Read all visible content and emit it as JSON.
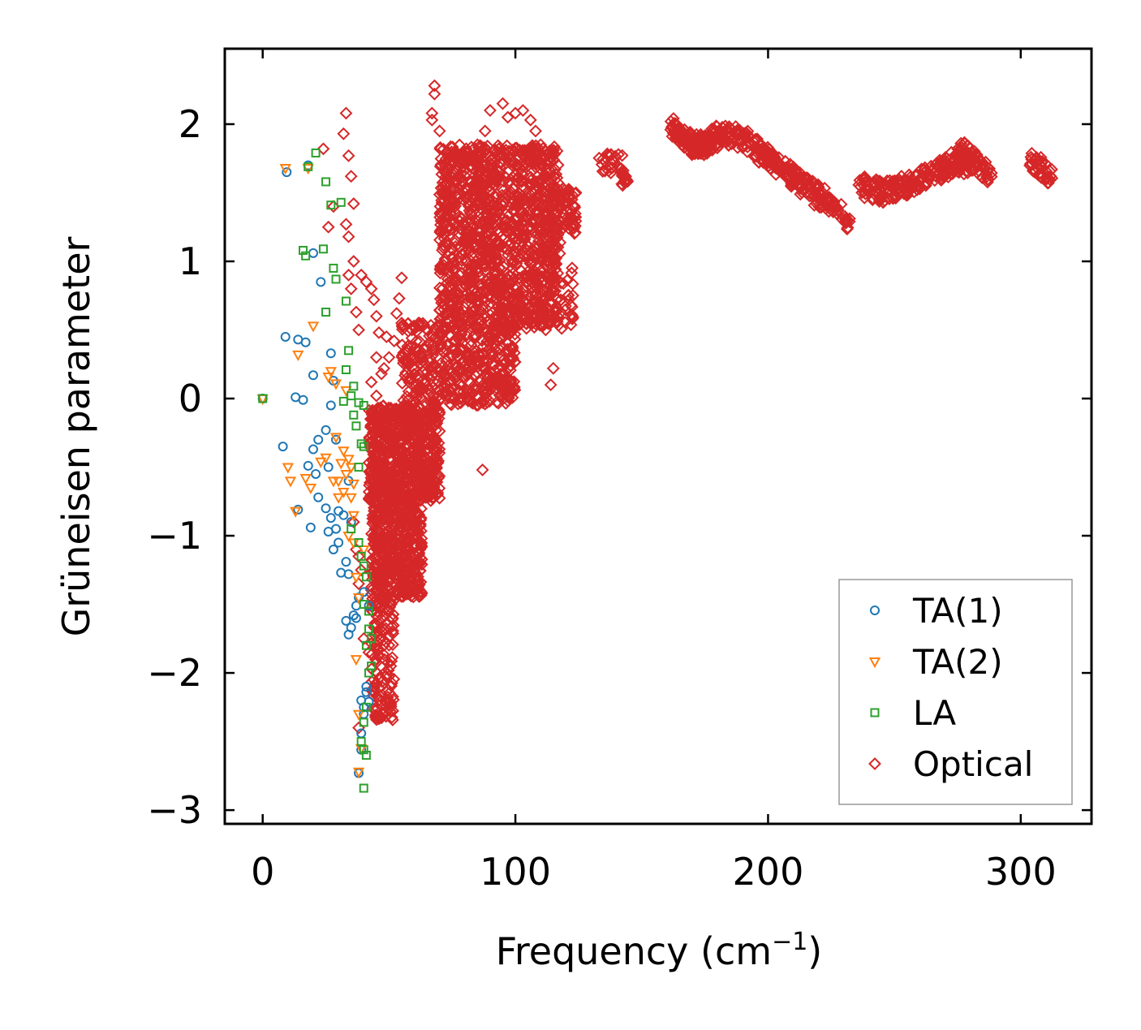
{
  "chart_data": {
    "type": "scatter",
    "title": "",
    "xlabel": "Frequency (cm",
    "xlabel_sup": "−1",
    "xlabel_suffix": ")",
    "ylabel": "Grüneisen parameter",
    "xlim": [
      -15,
      328
    ],
    "ylim": [
      -3.1,
      2.55
    ],
    "xticks": [
      0,
      100,
      200,
      300
    ],
    "xtick_labels": [
      "0",
      "100",
      "200",
      "300"
    ],
    "yticks": [
      -3,
      -2,
      -1,
      0,
      1,
      2
    ],
    "ytick_labels": [
      "−3",
      "−2",
      "−1",
      "0",
      "1",
      "2"
    ],
    "grid": false,
    "legend_position": "lower-right",
    "series": [
      {
        "name": "TA(1)",
        "marker": "circle",
        "color": "#1f77b4",
        "points": [
          [
            0,
            0
          ],
          [
            9.5,
            1.65
          ],
          [
            9,
            0.45
          ],
          [
            14,
            0.43
          ],
          [
            17,
            0.41
          ],
          [
            18,
            1.7
          ],
          [
            20,
            1.06
          ],
          [
            23,
            0.85
          ],
          [
            8,
            -0.35
          ],
          [
            13,
            0.01
          ],
          [
            16,
            -0.01
          ],
          [
            20,
            0.17
          ],
          [
            27,
            0.33
          ],
          [
            28,
            0.13
          ],
          [
            27,
            -0.05
          ],
          [
            25,
            -0.23
          ],
          [
            22,
            -0.3
          ],
          [
            20,
            -0.37
          ],
          [
            18,
            -0.49
          ],
          [
            21,
            -0.55
          ],
          [
            26,
            -0.5
          ],
          [
            29,
            -0.3
          ],
          [
            14,
            -0.81
          ],
          [
            19,
            -0.94
          ],
          [
            22,
            -0.72
          ],
          [
            25,
            -0.8
          ],
          [
            26,
            -0.97
          ],
          [
            27,
            -0.87
          ],
          [
            28,
            -1.1
          ],
          [
            29,
            -0.95
          ],
          [
            30,
            -1.05
          ],
          [
            31,
            -1.27
          ],
          [
            33,
            -1.19
          ],
          [
            34,
            -1.28
          ],
          [
            30,
            -0.82
          ],
          [
            32,
            -0.85
          ],
          [
            34,
            -0.6
          ],
          [
            35,
            -0.9
          ],
          [
            33,
            -1.62
          ],
          [
            34,
            -1.72
          ],
          [
            35,
            -1.67
          ],
          [
            36,
            -1.58
          ],
          [
            37,
            -1.51
          ],
          [
            38,
            -1.45
          ],
          [
            37,
            -1.6
          ],
          [
            39,
            -2.2
          ],
          [
            40,
            -2.25
          ],
          [
            41,
            -2.14
          ],
          [
            39,
            -2.44
          ],
          [
            40,
            -2.3
          ],
          [
            42,
            -2.21
          ],
          [
            38,
            -2.73
          ],
          [
            39,
            -2.56
          ],
          [
            41,
            -2.1
          ],
          [
            40,
            -1.41
          ],
          [
            42,
            -1.51
          ]
        ]
      },
      {
        "name": "TA(2)",
        "marker": "triangle-down",
        "color": "#ff7f0e",
        "points": [
          [
            0,
            0
          ],
          [
            9,
            1.68
          ],
          [
            18,
            1.68
          ],
          [
            14,
            0.32
          ],
          [
            20,
            0.53
          ],
          [
            27,
            0.2
          ],
          [
            29,
            0.11
          ],
          [
            33,
            0.06
          ],
          [
            26,
            0.16
          ],
          [
            29,
            -0.28
          ],
          [
            32,
            -0.38
          ],
          [
            34,
            -0.44
          ],
          [
            35,
            -0.5
          ],
          [
            36,
            -0.62
          ],
          [
            33,
            -0.55
          ],
          [
            31,
            -0.47
          ],
          [
            30,
            -0.6
          ],
          [
            10,
            -0.5
          ],
          [
            11,
            -0.6
          ],
          [
            13,
            -0.82
          ],
          [
            17,
            -0.58
          ],
          [
            19,
            -0.65
          ],
          [
            23,
            -0.46
          ],
          [
            25,
            -0.43
          ],
          [
            28,
            -0.6
          ],
          [
            30,
            -0.72
          ],
          [
            32,
            -0.68
          ],
          [
            35,
            -0.72
          ],
          [
            36,
            -0.85
          ],
          [
            34,
            -1.0
          ],
          [
            36,
            -1.05
          ],
          [
            37,
            -1.3
          ],
          [
            38,
            -1.45
          ],
          [
            37,
            -1.9
          ],
          [
            38,
            -2.3
          ],
          [
            39,
            -2.55
          ],
          [
            38,
            -2.72
          ],
          [
            40,
            -1.1
          ]
        ]
      },
      {
        "name": "LA",
        "marker": "square",
        "color": "#2ca02c",
        "points": [
          [
            0,
            0
          ],
          [
            21,
            1.79
          ],
          [
            18,
            1.69
          ],
          [
            25,
            1.58
          ],
          [
            27,
            1.41
          ],
          [
            31,
            1.43
          ],
          [
            16,
            1.08
          ],
          [
            17,
            1.04
          ],
          [
            24,
            1.09
          ],
          [
            28,
            0.95
          ],
          [
            29,
            0.87
          ],
          [
            25,
            0.63
          ],
          [
            33,
            0.71
          ],
          [
            34,
            0.35
          ],
          [
            33,
            0.21
          ],
          [
            36,
            0.09
          ],
          [
            35,
            0.02
          ],
          [
            32,
            -0.02
          ],
          [
            38,
            -0.03
          ],
          [
            40,
            -0.05
          ],
          [
            36,
            -0.12
          ],
          [
            37,
            -0.2
          ],
          [
            39,
            -0.33
          ],
          [
            40,
            -0.35
          ],
          [
            38,
            -0.5
          ],
          [
            35,
            -0.95
          ],
          [
            38,
            -1.05
          ],
          [
            39,
            -1.15
          ],
          [
            40,
            -1.22
          ],
          [
            41,
            -1.3
          ],
          [
            40,
            -1.5
          ],
          [
            42,
            -1.55
          ],
          [
            42,
            -1.68
          ],
          [
            43,
            -1.75
          ],
          [
            41,
            -1.8
          ],
          [
            43,
            -1.95
          ],
          [
            42,
            -2.0
          ],
          [
            41,
            -2.25
          ],
          [
            40,
            -2.36
          ],
          [
            39,
            -2.5
          ],
          [
            40,
            -2.56
          ],
          [
            41,
            -2.6
          ],
          [
            40,
            -2.84
          ]
        ]
      },
      {
        "name": "Optical",
        "marker": "diamond",
        "color": "#d62728",
        "density": [
          {
            "y_lo": 0.5,
            "y_hi": 1.85,
            "x_min": 70,
            "x_max": 117,
            "n": 1300
          },
          {
            "y_lo": -0.05,
            "y_hi": 0.55,
            "x_min": 55,
            "x_max": 100,
            "n": 450
          },
          {
            "y_lo": -0.75,
            "y_hi": -0.05,
            "x_min": 42,
            "x_max": 70,
            "n": 700
          },
          {
            "y_lo": -1.45,
            "y_hi": -0.75,
            "x_min": 43,
            "x_max": 63,
            "n": 450
          },
          {
            "y_lo": -2.35,
            "y_hi": -1.45,
            "x_min": 43,
            "x_max": 52,
            "n": 130
          },
          {
            "y_lo": 1.2,
            "y_hi": 1.55,
            "x_min": 115,
            "x_max": 124,
            "n": 70
          },
          {
            "y_lo": 0.5,
            "y_hi": 1.2,
            "x_min": 112,
            "x_max": 123,
            "n": 50
          }
        ],
        "bands": [
          {
            "x": [
              133,
              141,
              144
            ],
            "y": [
              1.7,
              1.73,
              1.55
            ],
            "n": 40
          },
          {
            "x": [
              162,
              172,
              182,
              192
            ],
            "y": [
              1.98,
              1.83,
              1.93,
              1.87
            ],
            "n": 200
          },
          {
            "x": [
              192,
              202,
              212,
              222,
              232
            ],
            "y": [
              1.87,
              1.72,
              1.58,
              1.45,
              1.3
            ],
            "n": 200
          },
          {
            "x": [
              236,
              246,
              256,
              268,
              282
            ],
            "y": [
              1.55,
              1.5,
              1.57,
              1.66,
              1.73
            ],
            "n": 200
          },
          {
            "x": [
              268,
              278,
              288
            ],
            "y": [
              1.66,
              1.8,
              1.62
            ],
            "n": 80
          },
          {
            "x": [
              304,
              312
            ],
            "y": [
              1.74,
              1.62
            ],
            "n": 40
          }
        ],
        "points": [
          [
            68,
            2.28
          ],
          [
            68,
            2.22
          ],
          [
            67,
            2.08
          ],
          [
            67,
            2.03
          ],
          [
            70,
            1.95
          ],
          [
            33,
            2.08
          ],
          [
            32,
            1.93
          ],
          [
            34,
            1.77
          ],
          [
            35,
            1.62
          ],
          [
            36,
            1.42
          ],
          [
            33,
            1.27
          ],
          [
            34,
            1.18
          ],
          [
            36,
            1.0
          ],
          [
            34,
            0.9
          ],
          [
            35,
            0.8
          ],
          [
            37,
            0.63
          ],
          [
            38,
            0.5
          ],
          [
            39,
            0.9
          ],
          [
            41,
            0.85
          ],
          [
            43,
            0.8
          ],
          [
            44,
            0.72
          ],
          [
            45,
            0.6
          ],
          [
            46,
            0.48
          ],
          [
            49,
            0.45
          ],
          [
            50,
            0.3
          ],
          [
            52,
            0.42
          ],
          [
            53,
            0.62
          ],
          [
            55,
            0.55
          ],
          [
            45,
            0.3
          ],
          [
            47,
            0.18
          ],
          [
            48,
            0.22
          ],
          [
            43,
            0.12
          ],
          [
            45,
            0.02
          ],
          [
            55,
            0.88
          ],
          [
            54,
            0.73
          ],
          [
            62,
            0.55
          ],
          [
            60,
            0.3
          ],
          [
            62,
            0.15
          ],
          [
            74,
            0.05
          ],
          [
            78,
            0.1
          ],
          [
            82,
            0.2
          ],
          [
            84,
            0.1
          ],
          [
            88,
            -0.04
          ],
          [
            86,
            -0.03
          ],
          [
            87,
            -0.52
          ],
          [
            64,
            -0.6
          ],
          [
            66,
            -0.5
          ],
          [
            68,
            -0.3
          ],
          [
            70,
            -0.1
          ],
          [
            58,
            -1.05
          ],
          [
            60,
            -0.9
          ],
          [
            61,
            -1.0
          ],
          [
            96,
            0.7
          ],
          [
            98,
            0.56
          ],
          [
            100,
            0.8
          ],
          [
            106,
            0.9
          ],
          [
            108,
            0.75
          ],
          [
            110,
            0.6
          ],
          [
            112,
            0.5
          ],
          [
            114,
            0.55
          ],
          [
            115,
            0.22
          ],
          [
            114,
            0.1
          ],
          [
            116,
            0.65
          ],
          [
            118,
            0.72
          ],
          [
            122,
            0.68
          ],
          [
            95,
            2.15
          ],
          [
            97,
            2.05
          ],
          [
            100,
            2.08
          ],
          [
            103,
            2.1
          ],
          [
            106,
            2.03
          ],
          [
            108,
            1.95
          ],
          [
            110,
            1.85
          ],
          [
            112,
            1.8
          ],
          [
            90,
            2.1
          ],
          [
            88,
            1.95
          ],
          [
            85,
            1.85
          ],
          [
            80,
            1.8
          ],
          [
            78,
            1.72
          ],
          [
            24,
            1.82
          ],
          [
            26,
            1.25
          ],
          [
            28,
            1.4
          ],
          [
            36,
            -0.9
          ],
          [
            37,
            -1.1
          ],
          [
            38,
            -1.15
          ],
          [
            39,
            -1.25
          ],
          [
            38,
            -1.35
          ],
          [
            40,
            -1.75
          ],
          [
            42,
            -1.85
          ],
          [
            44,
            -2.05
          ],
          [
            46,
            -2.2
          ],
          [
            47,
            -2.32
          ],
          [
            38,
            -2.4
          ]
        ]
      }
    ]
  }
}
